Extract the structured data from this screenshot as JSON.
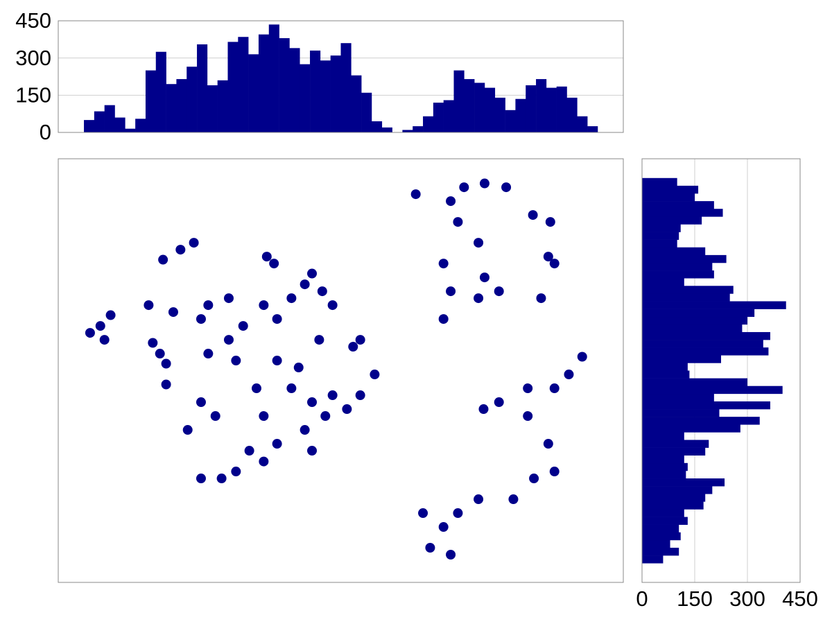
{
  "chart_data": [
    {
      "type": "histogram",
      "orientation": "vertical",
      "color": "#00008b",
      "grid": true,
      "bins": [
        0,
        1,
        2,
        3,
        4,
        5,
        6,
        7,
        8,
        9,
        10,
        11,
        12,
        13,
        14,
        15,
        16,
        17,
        18,
        19,
        20,
        21,
        22,
        23,
        24,
        25,
        26,
        27,
        28,
        29,
        30,
        31,
        32,
        33,
        34,
        35,
        36,
        37,
        38,
        39,
        40,
        41,
        42,
        43,
        44,
        45,
        46,
        47,
        48,
        49,
        50
      ],
      "values": [
        50,
        85,
        110,
        60,
        15,
        55,
        250,
        325,
        195,
        215,
        265,
        355,
        190,
        210,
        365,
        385,
        315,
        395,
        435,
        380,
        340,
        275,
        330,
        290,
        310,
        360,
        230,
        160,
        45,
        20,
        0,
        10,
        25,
        65,
        120,
        130,
        250,
        215,
        200,
        180,
        140,
        90,
        135,
        190,
        215,
        180,
        185,
        140,
        65,
        25
      ],
      "xlim": [
        -2.5,
        52.5
      ],
      "ylim": [
        0,
        450
      ],
      "yticks": [
        0,
        150,
        300,
        450
      ]
    },
    {
      "type": "scatter",
      "color": "#00008b",
      "x": [
        1.6,
        0.6,
        2.6,
        2.0,
        7.4,
        6.7,
        8.0,
        7.7,
        9.4,
        10.7,
        6.3,
        12.1,
        11.4,
        17.8,
        18.5,
        22.2,
        21.5,
        23.2,
        17.5,
        18.8,
        15.5,
        14.1,
        14.8,
        16.8,
        20.2,
        22.2,
        24.2,
        25.6,
        26.9,
        23.5,
        21.5,
        18.8,
        16.1,
        13.4,
        11.4,
        14.8,
        26.2,
        26.9,
        22.9,
        8.0,
        11.4,
        10.1,
        12.8,
        8.7,
        14.1,
        20.2,
        24.2,
        28.3,
        18.8,
        20.9,
        12.1,
        17.5,
        22.2,
        17.5,
        35.7,
        37.0,
        39.0,
        41.1,
        36.4,
        38.4,
        39.0,
        38.4,
        35.7,
        35.0,
        40.4,
        45.2,
        45.8,
        43.7,
        45.4,
        44.5,
        35.0,
        32.3,
        47.2,
        48.5,
        45.8,
        43.2,
        43.2,
        45.2,
        43.8,
        45.8,
        41.8,
        38.9,
        40.4,
        35.0,
        33.7,
        36.4,
        38.4,
        33.0,
        35.7
      ],
      "y": [
        30.8,
        29.9,
        32.2,
        29.0,
        27.2,
        28.6,
        25.9,
        39.4,
        40.7,
        41.6,
        33.5,
        33.5,
        31.7,
        39.8,
        38.9,
        37.6,
        36.2,
        35.3,
        33.5,
        31.7,
        30.8,
        29.0,
        26.3,
        22.7,
        22.7,
        20.9,
        21.8,
        20.0,
        21.8,
        19.1,
        17.3,
        15.5,
        14.6,
        11.0,
        11.0,
        11.9,
        28.1,
        29.0,
        29.0,
        23.2,
        20.9,
        17.3,
        19.1,
        32.6,
        34.4,
        34.4,
        33.5,
        24.5,
        26.3,
        25.4,
        27.2,
        19.1,
        14.6,
        13.2,
        47.0,
        48.8,
        49.3,
        48.8,
        44.3,
        41.6,
        37.1,
        34.4,
        35.3,
        31.7,
        35.3,
        39.8,
        38.9,
        45.2,
        44.3,
        34.4,
        38.9,
        47.9,
        24.5,
        26.8,
        22.7,
        22.7,
        19.1,
        15.5,
        11.0,
        11.9,
        8.3,
        20.0,
        20.9,
        4.7,
        2.0,
        6.5,
        8.3,
        6.5,
        1.1
      ],
      "xlim": [
        -2.5,
        52.5
      ],
      "ylim": [
        -2.5,
        52.5
      ]
    },
    {
      "type": "histogram",
      "orientation": "horizontal",
      "color": "#00008b",
      "grid": true,
      "bins": [
        0,
        1,
        2,
        3,
        4,
        5,
        6,
        7,
        8,
        9,
        10,
        11,
        12,
        13,
        14,
        15,
        16,
        17,
        18,
        19,
        20,
        21,
        22,
        23,
        24,
        25,
        26,
        27,
        28,
        29,
        30,
        31,
        32,
        33,
        34,
        35,
        36,
        37,
        38,
        39,
        40,
        41,
        42,
        43,
        44,
        45,
        46,
        47,
        48,
        49,
        50
      ],
      "values": [
        60,
        105,
        80,
        110,
        105,
        130,
        120,
        175,
        180,
        200,
        235,
        125,
        130,
        120,
        180,
        190,
        120,
        280,
        335,
        220,
        365,
        205,
        400,
        300,
        135,
        130,
        225,
        360,
        345,
        365,
        285,
        300,
        320,
        410,
        250,
        260,
        120,
        205,
        200,
        240,
        180,
        100,
        105,
        110,
        170,
        230,
        205,
        150,
        160,
        100
      ],
      "ylim": [
        -2.5,
        52.5
      ],
      "xlim": [
        0,
        450
      ],
      "xticks": [
        0,
        150,
        300,
        450
      ]
    }
  ]
}
